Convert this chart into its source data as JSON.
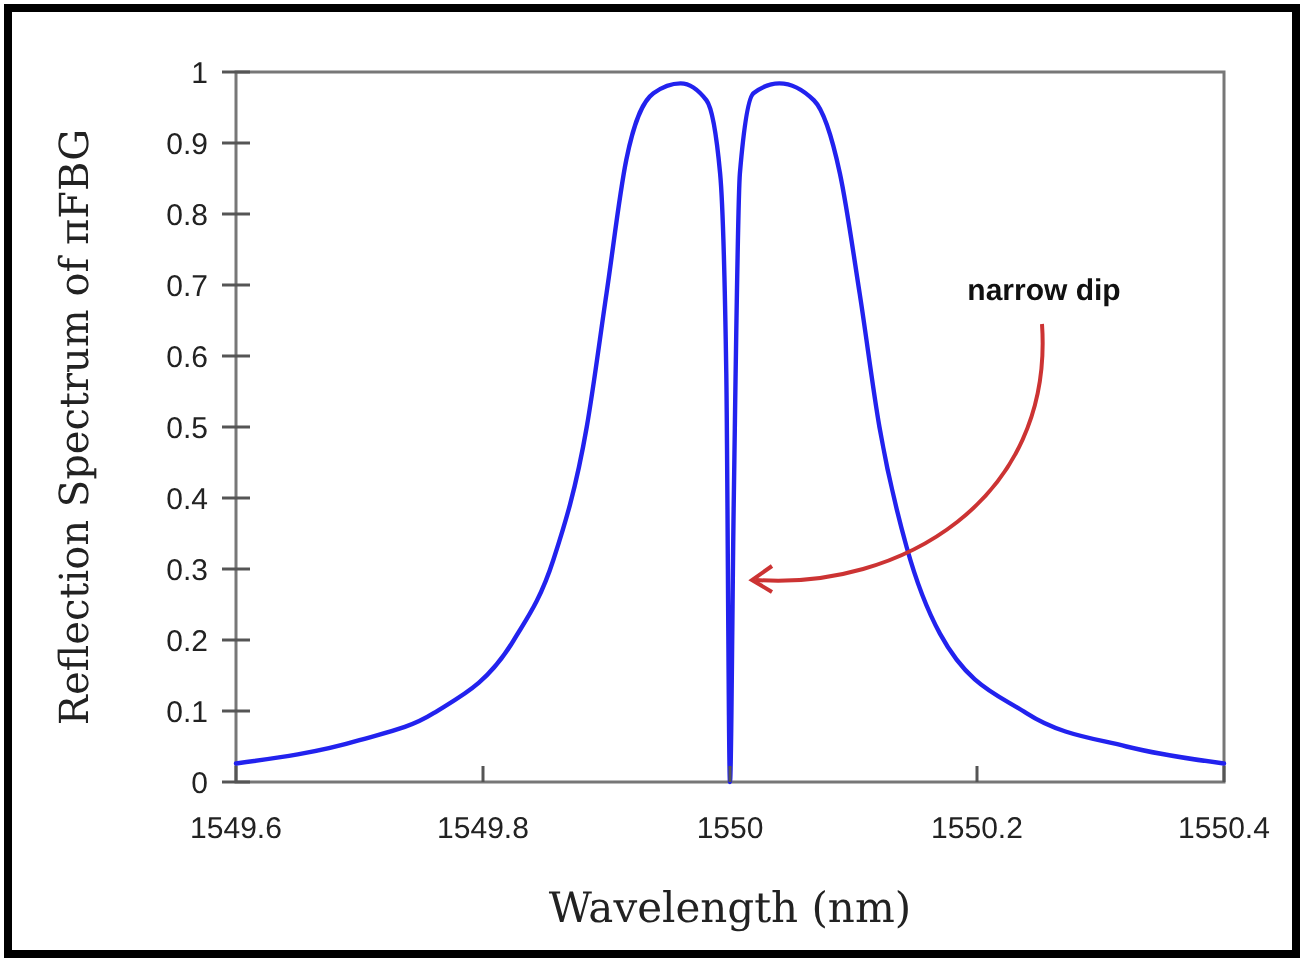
{
  "chart_data": {
    "type": "line",
    "xlabel": "Wavelength (nm)",
    "ylabel": "Reflection Spectrum of πFBG",
    "x": [
      1549.6,
      1549.7,
      1549.76,
      1549.825,
      1549.857,
      1549.884,
      1549.9,
      1549.916,
      1549.938,
      1549.96,
      1549.981,
      1549.992,
      1549.997,
      1550.0,
      1550.003,
      1550.008,
      1550.019,
      1550.04,
      1550.068,
      1550.089,
      1550.105,
      1550.121,
      1550.143,
      1550.17,
      1550.24,
      1550.321,
      1550.4
    ],
    "series": [
      {
        "color": "#2222ee",
        "values": [
          0.026,
          0.059,
          0.097,
          0.2,
          0.313,
          0.5,
          0.688,
          0.876,
          0.97,
          0.984,
          0.96,
          0.857,
          0.575,
          0,
          0.39,
          0.857,
          0.97,
          0.984,
          0.96,
          0.857,
          0.688,
          0.5,
          0.331,
          0.209,
          0.097,
          0.05,
          0.026
        ]
      }
    ],
    "xlim": [
      1549.6,
      1550.4
    ],
    "xticks": [
      1549.6,
      1549.8,
      1550,
      1550.2,
      1550.4
    ],
    "ylim": [
      0,
      1
    ],
    "yticks": [
      0,
      0.1,
      0.2,
      0.3,
      0.4,
      0.5,
      0.6,
      0.7,
      0.8,
      0.9,
      1
    ],
    "grid": false,
    "marker": "none",
    "line_style": "solid",
    "annotations": [
      "narrow dip"
    ]
  }
}
